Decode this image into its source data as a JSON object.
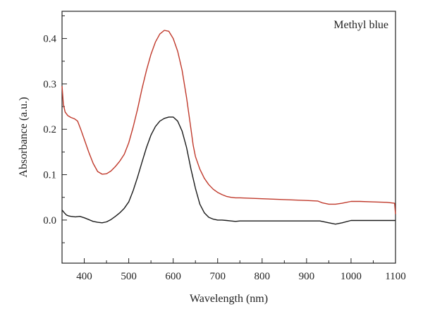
{
  "chart_data": {
    "type": "line",
    "xlabel": "Wavelength (nm)",
    "ylabel": "Absorbance (a.u.)",
    "annotation": "Methyl blue",
    "xlim": [
      350,
      1100
    ],
    "ylim": [
      -0.095,
      0.46
    ],
    "x_ticks": [
      400,
      500,
      600,
      700,
      800,
      900,
      1000,
      1100
    ],
    "y_ticks": [
      0.0,
      0.1,
      0.2,
      0.3,
      0.4
    ],
    "y_tick_labels": [
      "0.0",
      "0.1",
      "0.2",
      "0.3",
      "0.4"
    ],
    "grid": false,
    "legend": "none",
    "series": [
      {
        "color": "#c0392b",
        "points": [
          [
            350,
            0.295
          ],
          [
            353,
            0.255
          ],
          [
            357,
            0.238
          ],
          [
            363,
            0.23
          ],
          [
            370,
            0.226
          ],
          [
            378,
            0.223
          ],
          [
            385,
            0.218
          ],
          [
            392,
            0.2
          ],
          [
            400,
            0.178
          ],
          [
            410,
            0.15
          ],
          [
            420,
            0.125
          ],
          [
            430,
            0.107
          ],
          [
            440,
            0.101
          ],
          [
            450,
            0.102
          ],
          [
            460,
            0.108
          ],
          [
            470,
            0.118
          ],
          [
            480,
            0.13
          ],
          [
            490,
            0.145
          ],
          [
            500,
            0.17
          ],
          [
            510,
            0.205
          ],
          [
            520,
            0.245
          ],
          [
            530,
            0.29
          ],
          [
            540,
            0.33
          ],
          [
            550,
            0.365
          ],
          [
            560,
            0.392
          ],
          [
            570,
            0.41
          ],
          [
            580,
            0.418
          ],
          [
            590,
            0.416
          ],
          [
            600,
            0.4
          ],
          [
            610,
            0.372
          ],
          [
            620,
            0.33
          ],
          [
            630,
            0.27
          ],
          [
            640,
            0.2
          ],
          [
            645,
            0.165
          ],
          [
            650,
            0.14
          ],
          [
            660,
            0.112
          ],
          [
            670,
            0.092
          ],
          [
            680,
            0.078
          ],
          [
            690,
            0.068
          ],
          [
            700,
            0.061
          ],
          [
            710,
            0.056
          ],
          [
            720,
            0.052
          ],
          [
            730,
            0.05
          ],
          [
            740,
            0.049
          ],
          [
            750,
            0.049
          ],
          [
            800,
            0.047
          ],
          [
            850,
            0.045
          ],
          [
            900,
            0.043
          ],
          [
            925,
            0.042
          ],
          [
            935,
            0.038
          ],
          [
            950,
            0.035
          ],
          [
            965,
            0.035
          ],
          [
            980,
            0.037
          ],
          [
            1000,
            0.041
          ],
          [
            1020,
            0.041
          ],
          [
            1050,
            0.04
          ],
          [
            1080,
            0.039
          ],
          [
            1098,
            0.037
          ],
          [
            1100,
            0.013
          ]
        ]
      },
      {
        "color": "#1a1a1a",
        "points": [
          [
            350,
            0.022
          ],
          [
            355,
            0.016
          ],
          [
            360,
            0.011
          ],
          [
            365,
            0.009
          ],
          [
            370,
            0.008
          ],
          [
            380,
            0.007
          ],
          [
            390,
            0.008
          ],
          [
            400,
            0.005
          ],
          [
            410,
            0.001
          ],
          [
            420,
            -0.003
          ],
          [
            430,
            -0.005
          ],
          [
            440,
            -0.006
          ],
          [
            450,
            -0.004
          ],
          [
            460,
            0.001
          ],
          [
            470,
            0.008
          ],
          [
            480,
            0.016
          ],
          [
            490,
            0.026
          ],
          [
            500,
            0.04
          ],
          [
            510,
            0.065
          ],
          [
            520,
            0.095
          ],
          [
            530,
            0.128
          ],
          [
            540,
            0.16
          ],
          [
            550,
            0.187
          ],
          [
            560,
            0.206
          ],
          [
            570,
            0.218
          ],
          [
            580,
            0.224
          ],
          [
            590,
            0.227
          ],
          [
            600,
            0.227
          ],
          [
            610,
            0.218
          ],
          [
            620,
            0.196
          ],
          [
            630,
            0.16
          ],
          [
            640,
            0.112
          ],
          [
            650,
            0.07
          ],
          [
            660,
            0.035
          ],
          [
            670,
            0.016
          ],
          [
            680,
            0.006
          ],
          [
            690,
            0.002
          ],
          [
            700,
            0.0
          ],
          [
            710,
            0.0
          ],
          [
            720,
            -0.001
          ],
          [
            730,
            -0.002
          ],
          [
            740,
            -0.003
          ],
          [
            750,
            -0.002
          ],
          [
            800,
            -0.002
          ],
          [
            850,
            -0.002
          ],
          [
            900,
            -0.002
          ],
          [
            930,
            -0.002
          ],
          [
            950,
            -0.006
          ],
          [
            965,
            -0.009
          ],
          [
            980,
            -0.006
          ],
          [
            1000,
            -0.001
          ],
          [
            1050,
            -0.001
          ],
          [
            1100,
            -0.001
          ]
        ]
      }
    ]
  }
}
